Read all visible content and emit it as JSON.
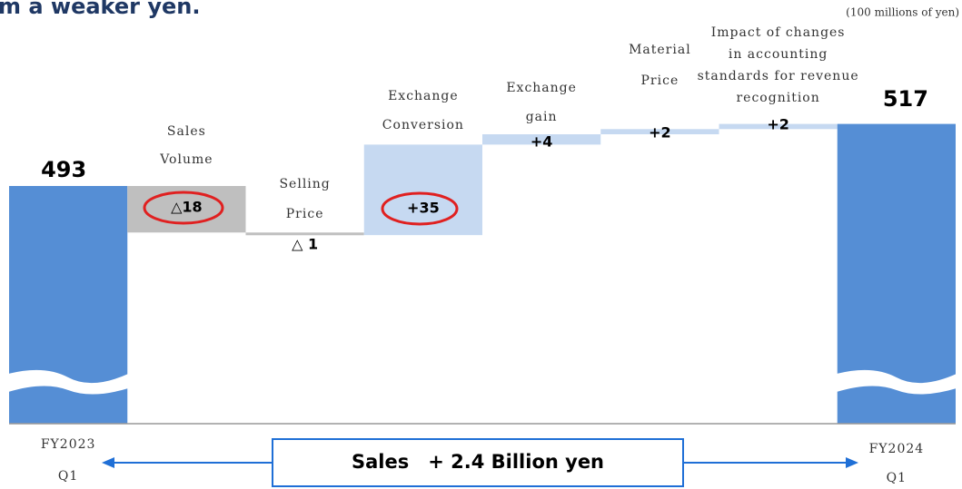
{
  "chart_data": {
    "type": "waterfall",
    "title": "m a weaker yen.",
    "unit": "(100 millions of yen)",
    "categories": [
      [
        "FY2023",
        "Q1"
      ],
      [
        "Sales",
        "Volume"
      ],
      [
        "Selling",
        "Price"
      ],
      [
        "Exchange",
        "Conversion"
      ],
      [
        "Exchange",
        "gain"
      ],
      [
        "Material",
        "Price"
      ],
      [
        "Impact of changes",
        "in accounting",
        "standards for revenue",
        "recognition"
      ],
      [
        "FY2024",
        "Q1"
      ]
    ],
    "values": [
      493,
      -18,
      -1,
      35,
      4,
      2,
      2,
      517
    ],
    "value_labels": [
      "493",
      "△18",
      "△ 1",
      "+35",
      "+4",
      "+2",
      "+2",
      "517"
    ],
    "colors": {
      "total": "#558ed5",
      "decrease": "#bfbfbf",
      "increase": "#c6d9f1"
    },
    "annotation": "Sales　+ 2.4 Billion yen"
  }
}
